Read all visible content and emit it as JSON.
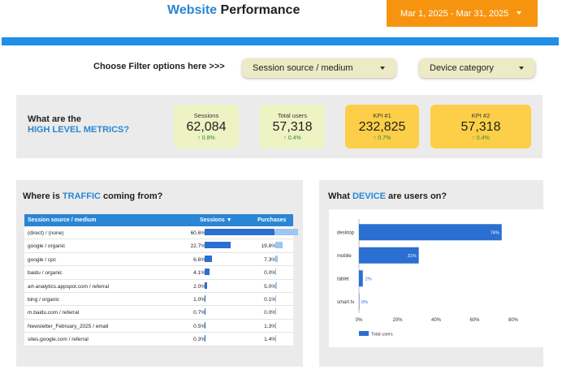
{
  "header": {
    "title_highlight": "Website",
    "title_rest": "Performance",
    "date_range": "Mar 1, 2025 - Mar 31, 2025"
  },
  "filters": {
    "label": "Choose Filter options here >>>",
    "session_source": "Session source / medium",
    "device_category": "Device category"
  },
  "metrics": {
    "question_line1": "What are the",
    "question_line2": "HIGH LEVEL METRICS?",
    "cards": [
      {
        "label": "Sessions",
        "value": "62,084",
        "change": "↑ 0.8%"
      },
      {
        "label": "Total users",
        "value": "57,318",
        "change": "↑ 0.4%"
      },
      {
        "label": "KPI #1",
        "value": "232,825",
        "change": "↑ 0.7%"
      },
      {
        "label": "KPI #2",
        "value": "57,318",
        "change": "↑ 0.4%"
      }
    ]
  },
  "traffic": {
    "title_pre": "Where is",
    "title_highlight": "TRAFFIC",
    "title_post": "coming from?",
    "columns": [
      "Session source / medium",
      "Sessions ▼",
      "Purchases"
    ],
    "rows": [
      {
        "source": "(direct) / (none)",
        "sessions": "60.6%",
        "sessions_pct": 60.6,
        "purchases": "64.0%",
        "purchases_pct": 64.0
      },
      {
        "source": "google / organic",
        "sessions": "22.7%",
        "sessions_pct": 22.7,
        "purchases": "19.8%",
        "purchases_pct": 19.8
      },
      {
        "source": "google / cpc",
        "sessions": "6.6%",
        "sessions_pct": 6.6,
        "purchases": "7.3%",
        "purchases_pct": 7.3
      },
      {
        "source": "baidu / organic",
        "sessions": "4.1%",
        "sessions_pct": 4.1,
        "purchases": "0.0%",
        "purchases_pct": 0.0
      },
      {
        "source": "art-analytics.appspot.com / referral",
        "sessions": "2.0%",
        "sessions_pct": 2.0,
        "purchases": "5.0%",
        "purchases_pct": 5.0
      },
      {
        "source": "bing / organic",
        "sessions": "1.0%",
        "sessions_pct": 1.0,
        "purchases": "0.1%",
        "purchases_pct": 0.1
      },
      {
        "source": "m.baidu.com / referral",
        "sessions": "0.7%",
        "sessions_pct": 0.7,
        "purchases": "0.0%",
        "purchases_pct": 0.0
      },
      {
        "source": "Newsletter_February_2025 / email",
        "sessions": "0.5%",
        "sessions_pct": 0.5,
        "purchases": "1.3%",
        "purchases_pct": 1.3
      },
      {
        "source": "sites.google.com / referral",
        "sessions": "0.3%",
        "sessions_pct": 0.3,
        "purchases": "1.4%",
        "purchases_pct": 1.4
      }
    ]
  },
  "device": {
    "title_pre": "What",
    "title_highlight": "DEVICE",
    "title_post": "are users on?"
  },
  "chart_data": {
    "type": "bar",
    "orientation": "horizontal",
    "categories": [
      "desktop",
      "mobile",
      "tablet",
      "smart tv"
    ],
    "series": [
      {
        "name": "Total users",
        "values": [
          74,
          31,
          2,
          0
        ]
      }
    ],
    "data_labels": [
      "74%",
      "31%",
      "2%",
      "0%"
    ],
    "xticks": [
      "0%",
      "20%",
      "40%",
      "60%",
      "80%"
    ],
    "xlim": [
      0,
      80
    ],
    "legend": "bottom-left",
    "color": "#2a6fd1"
  },
  "colors": {
    "accent_blue": "#2a86d4",
    "bar_blue": "#2a6fd1",
    "orange": "#f7940f",
    "gold": "#fdcf48",
    "pale_green": "#eef3c4",
    "positive": "#2e8b3a"
  }
}
